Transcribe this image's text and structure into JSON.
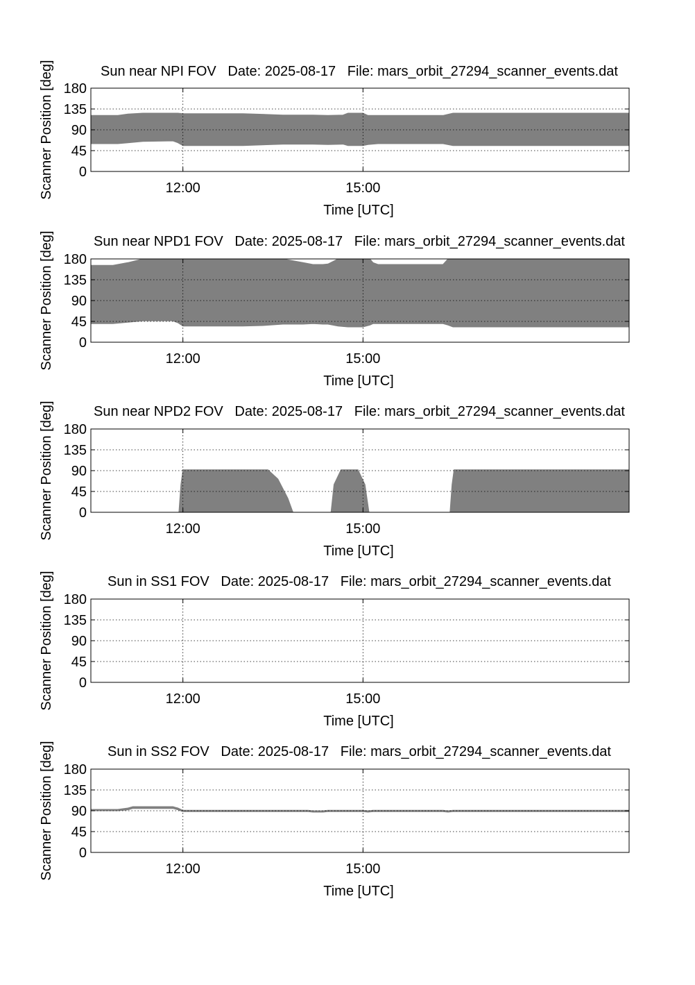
{
  "colors": {
    "fill": "#808080",
    "axis": "#000000",
    "grid": "#000000",
    "background": "#ffffff"
  },
  "chart_data": [
    {
      "type": "area",
      "title": "Sun near NPI FOV   Date: 2025-08-17   File: mars_orbit_27294_scanner_events.dat",
      "xlabel": "Time [UTC]",
      "ylabel": "Scanner Position [deg]",
      "xlim": [
        "10:28",
        "19:26"
      ],
      "ylim": [
        0,
        180
      ],
      "xticks": [
        "12:00",
        "15:00"
      ],
      "yticks": [
        "0",
        "45",
        "90",
        "135",
        "180"
      ],
      "grid": true,
      "series": [
        {
          "x": [
            "10:28",
            "10:55",
            "11:05",
            "11:20",
            "11:50",
            "11:55",
            "12:00",
            "13:00",
            "13:40",
            "14:10",
            "14:25",
            "14:40",
            "14:45",
            "15:00",
            "15:05",
            "15:15",
            "16:20",
            "16:30",
            "19:26"
          ],
          "lower": [
            60,
            60,
            62,
            65,
            66,
            62,
            56,
            56,
            59,
            59,
            58,
            59,
            56,
            56,
            58,
            60,
            60,
            56,
            56
          ],
          "upper": [
            121,
            121,
            124,
            126,
            126,
            126,
            125,
            125,
            122,
            122,
            121,
            122,
            126,
            126,
            121,
            121,
            121,
            126,
            126
          ]
        }
      ]
    },
    {
      "type": "area",
      "title": "Sun near NPD1 FOV   Date: 2025-08-17   File: mars_orbit_27294_scanner_events.dat",
      "xlabel": "Time [UTC]",
      "ylabel": "Scanner Position [deg]",
      "xlim": [
        "10:28",
        "19:26"
      ],
      "ylim": [
        0,
        180
      ],
      "xticks": [
        "12:00",
        "15:00"
      ],
      "yticks": [
        "0",
        "45",
        "90",
        "135",
        "180"
      ],
      "grid": true,
      "series": [
        {
          "x": [
            "10:28",
            "10:50",
            "11:05",
            "11:20",
            "11:50",
            "11:55",
            "12:00",
            "13:00",
            "13:20",
            "13:40",
            "14:00",
            "14:10",
            "14:20",
            "14:25",
            "14:35",
            "14:45",
            "15:00",
            "15:07",
            "15:10",
            "15:15",
            "16:20",
            "16:25",
            "16:30",
            "19:26"
          ],
          "lower": [
            40,
            40,
            43,
            46,
            46,
            42,
            35,
            35,
            36,
            39,
            39,
            40,
            39,
            39,
            35,
            33,
            33,
            37,
            40,
            40,
            40,
            37,
            33,
            33
          ],
          "upper": [
            166,
            166,
            172,
            180,
            180,
            180,
            180,
            180,
            180,
            180,
            172,
            168,
            168,
            169,
            180,
            180,
            180,
            180,
            172,
            168,
            168,
            180,
            180,
            180
          ]
        }
      ]
    },
    {
      "type": "area",
      "title": "Sun near NPD2 FOV   Date: 2025-08-17   File: mars_orbit_27294_scanner_events.dat",
      "xlabel": "Time [UTC]",
      "ylabel": "Scanner Position [deg]",
      "xlim": [
        "10:28",
        "19:26"
      ],
      "ylim": [
        0,
        180
      ],
      "xticks": [
        "12:00",
        "15:00"
      ],
      "yticks": [
        "0",
        "45",
        "90",
        "135",
        "180"
      ],
      "grid": true,
      "series": [
        {
          "x": [
            "10:28",
            "11:56",
            "11:58",
            "12:00",
            "13:25",
            "13:35",
            "13:45",
            "13:50",
            "14:28",
            "14:31",
            "14:38",
            "14:48",
            "14:55",
            "15:02",
            "15:06",
            "16:27",
            "16:29",
            "16:31",
            "19:26"
          ],
          "lower": [
            0,
            0,
            0,
            0,
            0,
            0,
            0,
            0,
            0,
            0,
            0,
            0,
            0,
            0,
            0,
            0,
            0,
            0,
            0
          ],
          "upper": [
            0,
            0,
            60,
            92,
            92,
            72,
            30,
            0,
            0,
            60,
            92,
            92,
            92,
            60,
            0,
            0,
            60,
            92,
            92
          ]
        }
      ]
    },
    {
      "type": "area",
      "title": "Sun in SS1 FOV   Date: 2025-08-17   File: mars_orbit_27294_scanner_events.dat",
      "xlabel": "Time [UTC]",
      "ylabel": "Scanner Position [deg]",
      "xlim": [
        "10:28",
        "19:26"
      ],
      "ylim": [
        0,
        180
      ],
      "xticks": [
        "12:00",
        "15:00"
      ],
      "yticks": [
        "0",
        "45",
        "90",
        "135",
        "180"
      ],
      "grid": true,
      "series": []
    },
    {
      "type": "area",
      "title": "Sun in SS2 FOV   Date: 2025-08-17   File: mars_orbit_27294_scanner_events.dat",
      "xlabel": "Time [UTC]",
      "ylabel": "Scanner Position [deg]",
      "xlim": [
        "10:28",
        "19:26"
      ],
      "ylim": [
        0,
        180
      ],
      "xticks": [
        "12:00",
        "15:00"
      ],
      "yticks": [
        "0",
        "45",
        "90",
        "135",
        "180"
      ],
      "grid": true,
      "series": [
        {
          "x": [
            "10:28",
            "10:55",
            "11:05",
            "11:10",
            "11:50",
            "11:55",
            "12:00",
            "14:05",
            "14:10",
            "14:20",
            "14:25",
            "15:00",
            "15:05",
            "15:10",
            "16:20",
            "16:25",
            "16:30",
            "19:26"
          ],
          "lower": [
            90,
            90,
            92,
            95,
            95,
            92,
            88,
            88,
            87,
            87,
            88,
            88,
            87,
            88,
            88,
            87,
            88,
            88
          ],
          "upper": [
            93,
            93,
            96,
            99,
            99,
            96,
            91,
            91,
            90,
            90,
            91,
            91,
            90,
            91,
            91,
            90,
            91,
            91
          ]
        }
      ]
    }
  ]
}
